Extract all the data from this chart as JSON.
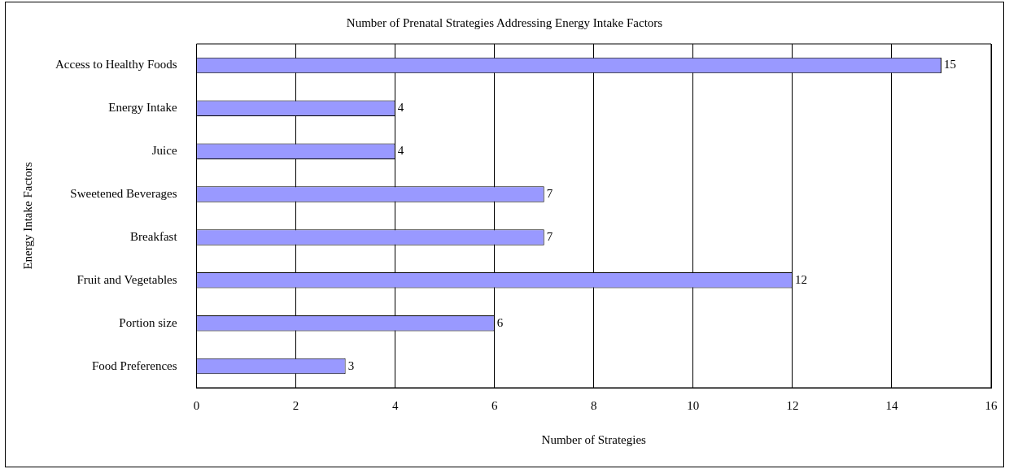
{
  "chart_data": {
    "type": "bar",
    "orientation": "horizontal",
    "title": "Number of Prenatal Strategies Addressing Energy Intake Factors",
    "xlabel": "Number of Strategies",
    "ylabel": "Energy Intake Factors",
    "categories": [
      "Access to Healthy Foods",
      "Energy Intake",
      "Juice",
      "Sweetened Beverages",
      "Breakfast",
      "Fruit and Vegetables",
      "Portion size",
      "Food Preferences"
    ],
    "values": [
      15,
      4,
      4,
      7,
      7,
      12,
      6,
      3
    ],
    "color": "#9999ff",
    "xlim": [
      0,
      16
    ],
    "xticks": [
      0,
      2,
      4,
      6,
      8,
      10,
      12,
      14,
      16
    ],
    "grid": "x",
    "data_labels": true
  }
}
